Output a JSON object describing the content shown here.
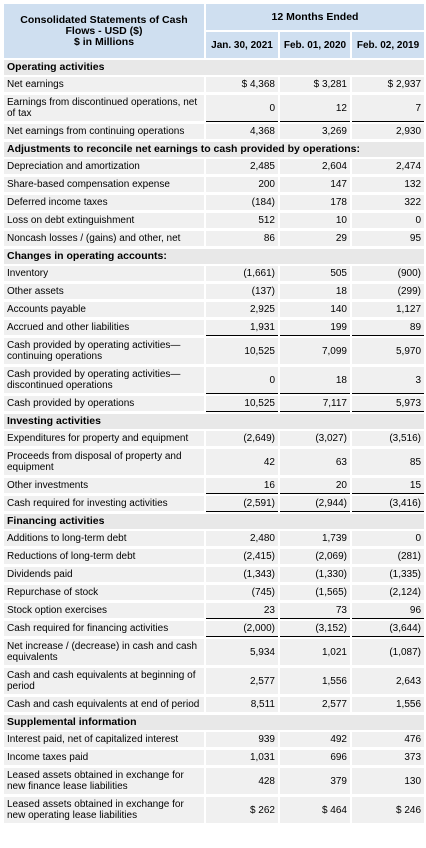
{
  "header": {
    "title": "Consolidated Statements of Cash Flows - USD ($)\n$ in Millions",
    "period": "12 Months Ended",
    "dates": [
      "Jan. 30, 2021",
      "Feb. 01, 2020",
      "Feb. 02, 2019"
    ]
  },
  "rows": [
    {
      "type": "header",
      "label": "Operating activities"
    },
    {
      "type": "row",
      "label": "Net earnings",
      "values": [
        "$ 4,368",
        "$ 3,281",
        "$ 2,937"
      ]
    },
    {
      "type": "row",
      "label": "Earnings from discontinued operations, net of tax",
      "values": [
        "0",
        "12",
        "7"
      ],
      "ul": true
    },
    {
      "type": "row",
      "label": "Net earnings from continuing operations",
      "values": [
        "4,368",
        "3,269",
        "2,930"
      ]
    },
    {
      "type": "header",
      "label": "Adjustments to reconcile net earnings to cash provided by operations:"
    },
    {
      "type": "row",
      "label": "Depreciation and amortization",
      "values": [
        "2,485",
        "2,604",
        "2,474"
      ]
    },
    {
      "type": "row",
      "label": "Share-based compensation expense",
      "values": [
        "200",
        "147",
        "132"
      ]
    },
    {
      "type": "row",
      "label": "Deferred income taxes",
      "values": [
        "(184)",
        "178",
        "322"
      ]
    },
    {
      "type": "row",
      "label": "Loss on debt extinguishment",
      "values": [
        "512",
        "10",
        "0"
      ]
    },
    {
      "type": "row",
      "label": "Noncash losses / (gains) and other, net",
      "values": [
        "86",
        "29",
        "95"
      ]
    },
    {
      "type": "header",
      "label": "Changes in operating accounts:"
    },
    {
      "type": "row",
      "label": "Inventory",
      "values": [
        "(1,661)",
        "505",
        "(900)"
      ]
    },
    {
      "type": "row",
      "label": "Other assets",
      "values": [
        "(137)",
        "18",
        "(299)"
      ]
    },
    {
      "type": "row",
      "label": "Accounts payable",
      "values": [
        "2,925",
        "140",
        "1,127"
      ]
    },
    {
      "type": "row",
      "label": "Accrued and other liabilities",
      "values": [
        "1,931",
        "199",
        "89"
      ],
      "ul": true
    },
    {
      "type": "row",
      "label": "Cash provided by operating activities—continuing operations",
      "values": [
        "10,525",
        "7,099",
        "5,970"
      ]
    },
    {
      "type": "row",
      "label": "Cash provided by operating activities—discontinued operations",
      "values": [
        "0",
        "18",
        "3"
      ],
      "ul": true
    },
    {
      "type": "row",
      "label": "Cash provided by operations",
      "values": [
        "10,525",
        "7,117",
        "5,973"
      ],
      "ul": true
    },
    {
      "type": "header",
      "label": "Investing activities"
    },
    {
      "type": "row",
      "label": "Expenditures for property and equipment",
      "values": [
        "(2,649)",
        "(3,027)",
        "(3,516)"
      ]
    },
    {
      "type": "row",
      "label": "Proceeds from disposal of property and equipment",
      "values": [
        "42",
        "63",
        "85"
      ]
    },
    {
      "type": "row",
      "label": "Other investments",
      "values": [
        "16",
        "20",
        "15"
      ],
      "ul": true
    },
    {
      "type": "row",
      "label": "Cash required for investing activities",
      "values": [
        "(2,591)",
        "(2,944)",
        "(3,416)"
      ],
      "ul": true
    },
    {
      "type": "header",
      "label": "Financing activities"
    },
    {
      "type": "row",
      "label": "Additions to long-term debt",
      "values": [
        "2,480",
        "1,739",
        "0"
      ]
    },
    {
      "type": "row",
      "label": "Reductions of long-term debt",
      "values": [
        "(2,415)",
        "(2,069)",
        "(281)"
      ]
    },
    {
      "type": "row",
      "label": "Dividends paid",
      "values": [
        "(1,343)",
        "(1,330)",
        "(1,335)"
      ]
    },
    {
      "type": "row",
      "label": "Repurchase of stock",
      "values": [
        "(745)",
        "(1,565)",
        "(2,124)"
      ]
    },
    {
      "type": "row",
      "label": "Stock option exercises",
      "values": [
        "23",
        "73",
        "96"
      ],
      "ul": true
    },
    {
      "type": "row",
      "label": "Cash required for financing activities",
      "values": [
        "(2,000)",
        "(3,152)",
        "(3,644)"
      ],
      "ul": true
    },
    {
      "type": "row",
      "label": "Net increase / (decrease) in cash and cash equivalents",
      "values": [
        "5,934",
        "1,021",
        "(1,087)"
      ]
    },
    {
      "type": "row",
      "label": "Cash and cash equivalents at beginning of period",
      "values": [
        "2,577",
        "1,556",
        "2,643"
      ]
    },
    {
      "type": "row",
      "label": "Cash and cash equivalents at end of period",
      "values": [
        "8,511",
        "2,577",
        "1,556"
      ]
    },
    {
      "type": "header",
      "label": "Supplemental information"
    },
    {
      "type": "row",
      "label": "Interest paid, net of capitalized interest",
      "values": [
        "939",
        "492",
        "476"
      ]
    },
    {
      "type": "row",
      "label": "Income taxes paid",
      "values": [
        "1,031",
        "696",
        "373"
      ]
    },
    {
      "type": "row",
      "label": "Leased assets obtained in exchange for new finance lease liabilities",
      "values": [
        "428",
        "379",
        "130"
      ]
    },
    {
      "type": "row",
      "label": "Leased assets obtained in exchange for new operating lease liabilities",
      "values": [
        "$ 262",
        "$ 464",
        "$ 246"
      ]
    }
  ]
}
